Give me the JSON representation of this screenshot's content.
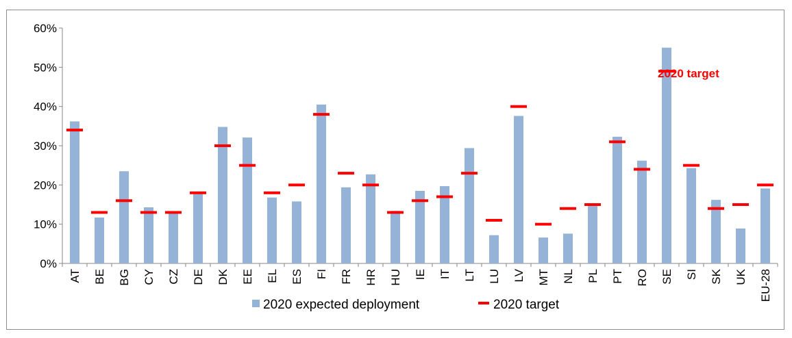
{
  "chart_data": {
    "type": "bar",
    "categories": [
      "AT",
      "BE",
      "BG",
      "CY",
      "CZ",
      "DE",
      "DK",
      "EE",
      "EL",
      "ES",
      "FI",
      "FR",
      "HR",
      "HU",
      "IE",
      "IT",
      "LT",
      "LU",
      "LV",
      "MT",
      "NL",
      "PL",
      "PT",
      "RO",
      "SE",
      "SI",
      "SK",
      "UK",
      "EU-28"
    ],
    "series": [
      {
        "name": "2020 expected deployment",
        "type": "bar",
        "color": "#95b3d7",
        "values": [
          36.2,
          11.7,
          23.5,
          14.3,
          13.2,
          18.0,
          34.8,
          32.1,
          16.8,
          15.8,
          40.5,
          19.4,
          22.7,
          13.4,
          18.5,
          19.7,
          29.4,
          7.2,
          37.6,
          6.6,
          7.6,
          15.1,
          32.3,
          26.2,
          55.0,
          24.3,
          16.2,
          8.9,
          19.1
        ]
      },
      {
        "name": "2020 target",
        "type": "marker",
        "color": "#ff0000",
        "values": [
          34,
          13,
          16,
          13,
          13,
          18,
          30,
          25,
          18,
          20,
          38,
          23,
          20,
          13,
          16,
          17,
          23,
          11,
          40,
          10,
          14,
          15,
          31,
          24,
          49,
          25,
          14,
          15,
          20
        ]
      }
    ],
    "y_ticks": [
      "0%",
      "10%",
      "20%",
      "30%",
      "40%",
      "50%",
      "60%"
    ],
    "ylim": [
      0,
      60
    ],
    "y_unit": "%",
    "grid": false,
    "legend_position": "bottom",
    "annotation": "2020 target"
  }
}
